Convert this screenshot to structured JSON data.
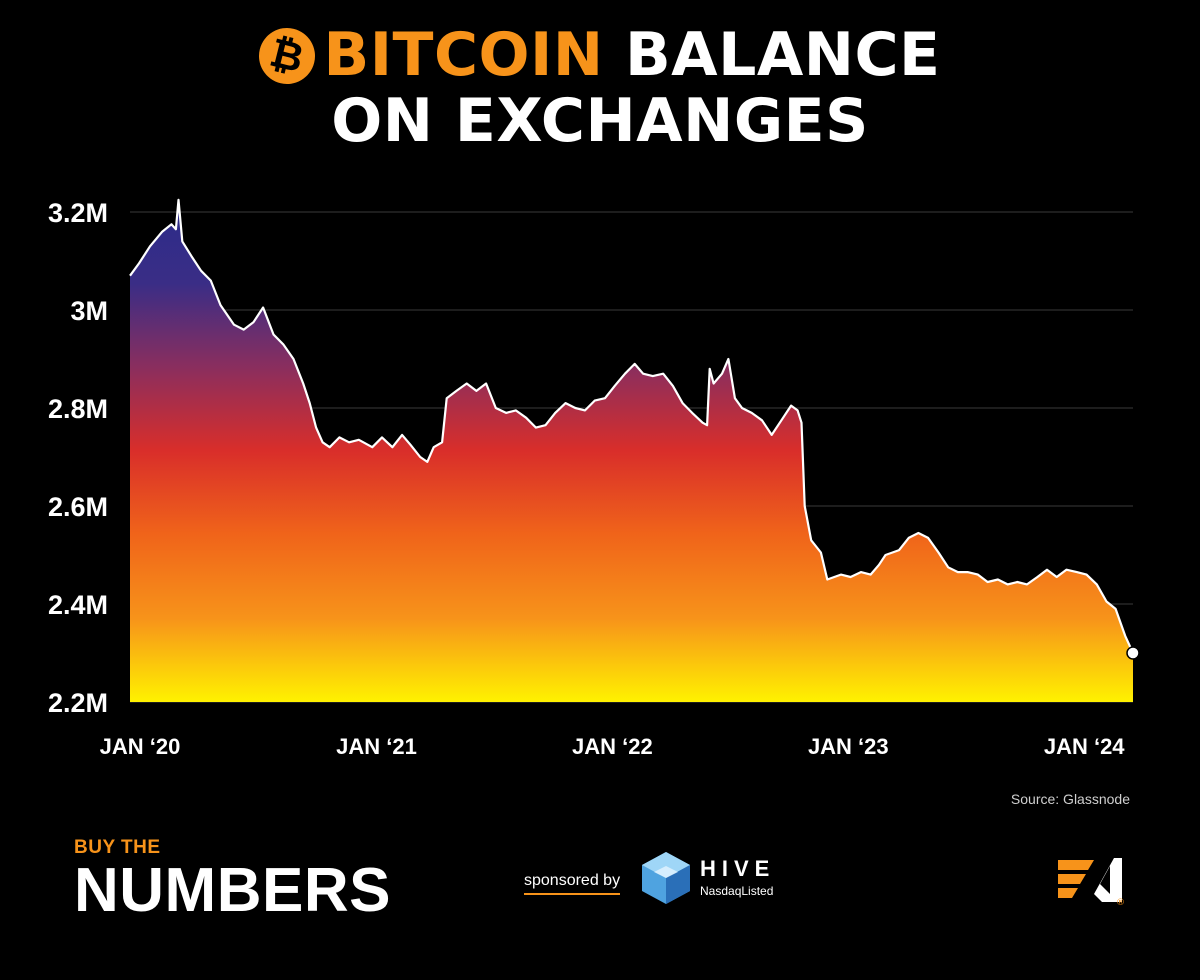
{
  "header": {
    "title_accent": "BITCOIN",
    "title_rest": "BALANCE",
    "title_line2": "ON EXCHANGES",
    "icon": "bitcoin-icon",
    "icon_glyph": "₿"
  },
  "source": "Source: Glassnode",
  "footer": {
    "brand_small": "BUY THE",
    "brand_big": "NUMBERS",
    "sponsored_by": "sponsored by",
    "sponsor_name": "HIVE",
    "sponsor_sub": "NasdaqListed"
  },
  "colors": {
    "accent": "#f7931a",
    "background": "#000000",
    "line": "#ffffff",
    "gradient": [
      "#2b2c8a",
      "#3a2d86",
      "#8a2e5e",
      "#d92e2a",
      "#f0641a",
      "#f7931a",
      "#fff200"
    ]
  },
  "chart_data": {
    "type": "area",
    "title": "BITCOIN BALANCE ON EXCHANGES",
    "xlabel": "",
    "ylabel": "",
    "x_tick_labels": [
      "JAN ‘20",
      "JAN ‘21",
      "JAN ‘22",
      "JAN ‘23",
      "JAN ‘24"
    ],
    "y_tick_labels": [
      "3.2M",
      "3M",
      "2.8M",
      "2.6M",
      "2.4M",
      "2.2M"
    ],
    "y_ticks": [
      3200000,
      3000000,
      2800000,
      2600000,
      2400000,
      2200000
    ],
    "ylim": [
      2200000,
      3200000
    ],
    "xlim": [
      "2020-01-01",
      "2024-04-01"
    ],
    "grid": true,
    "legend": "none",
    "fill": "vertical gradient from indigo (top) through red to yellow (bottom)",
    "end_marker": true,
    "series": [
      {
        "values": [
          [
            "2020-01-01",
            3070000
          ],
          [
            "2020-01-15",
            3095000
          ],
          [
            "2020-02-01",
            3130000
          ],
          [
            "2020-02-20",
            3160000
          ],
          [
            "2020-03-05",
            3175000
          ],
          [
            "2020-03-12",
            3165000
          ],
          [
            "2020-03-16",
            3225000
          ],
          [
            "2020-03-22",
            3140000
          ],
          [
            "2020-04-05",
            3110000
          ],
          [
            "2020-04-20",
            3080000
          ],
          [
            "2020-05-05",
            3060000
          ],
          [
            "2020-05-20",
            3010000
          ],
          [
            "2020-06-10",
            2970000
          ],
          [
            "2020-06-25",
            2960000
          ],
          [
            "2020-07-10",
            2975000
          ],
          [
            "2020-07-25",
            3005000
          ],
          [
            "2020-08-10",
            2950000
          ],
          [
            "2020-08-25",
            2930000
          ],
          [
            "2020-09-10",
            2900000
          ],
          [
            "2020-09-25",
            2850000
          ],
          [
            "2020-10-05",
            2810000
          ],
          [
            "2020-10-15",
            2760000
          ],
          [
            "2020-10-25",
            2730000
          ],
          [
            "2020-11-05",
            2720000
          ],
          [
            "2020-11-20",
            2740000
          ],
          [
            "2020-12-05",
            2730000
          ],
          [
            "2020-12-20",
            2735000
          ],
          [
            "2021-01-10",
            2720000
          ],
          [
            "2021-01-25",
            2740000
          ],
          [
            "2021-02-10",
            2720000
          ],
          [
            "2021-02-25",
            2745000
          ],
          [
            "2021-03-10",
            2725000
          ],
          [
            "2021-03-25",
            2700000
          ],
          [
            "2021-04-05",
            2690000
          ],
          [
            "2021-04-15",
            2720000
          ],
          [
            "2021-04-28",
            2730000
          ],
          [
            "2021-05-05",
            2820000
          ],
          [
            "2021-05-20",
            2835000
          ],
          [
            "2021-06-05",
            2850000
          ],
          [
            "2021-06-20",
            2835000
          ],
          [
            "2021-07-05",
            2850000
          ],
          [
            "2021-07-20",
            2800000
          ],
          [
            "2021-08-05",
            2790000
          ],
          [
            "2021-08-20",
            2795000
          ],
          [
            "2021-09-05",
            2780000
          ],
          [
            "2021-09-20",
            2760000
          ],
          [
            "2021-10-05",
            2765000
          ],
          [
            "2021-10-20",
            2790000
          ],
          [
            "2021-11-05",
            2810000
          ],
          [
            "2021-11-20",
            2800000
          ],
          [
            "2021-12-05",
            2795000
          ],
          [
            "2021-12-20",
            2815000
          ],
          [
            "2022-01-05",
            2820000
          ],
          [
            "2022-01-20",
            2845000
          ],
          [
            "2022-02-05",
            2870000
          ],
          [
            "2022-02-20",
            2890000
          ],
          [
            "2022-03-05",
            2870000
          ],
          [
            "2022-03-20",
            2865000
          ],
          [
            "2022-04-05",
            2870000
          ],
          [
            "2022-04-20",
            2845000
          ],
          [
            "2022-05-05",
            2810000
          ],
          [
            "2022-05-20",
            2790000
          ],
          [
            "2022-06-05",
            2770000
          ],
          [
            "2022-06-12",
            2765000
          ],
          [
            "2022-06-16",
            2880000
          ],
          [
            "2022-06-22",
            2850000
          ],
          [
            "2022-07-05",
            2870000
          ],
          [
            "2022-07-15",
            2900000
          ],
          [
            "2022-07-25",
            2820000
          ],
          [
            "2022-08-05",
            2800000
          ],
          [
            "2022-08-20",
            2790000
          ],
          [
            "2022-09-05",
            2775000
          ],
          [
            "2022-09-20",
            2745000
          ],
          [
            "2022-10-05",
            2775000
          ],
          [
            "2022-10-20",
            2805000
          ],
          [
            "2022-10-30",
            2795000
          ],
          [
            "2022-11-05",
            2770000
          ],
          [
            "2022-11-10",
            2600000
          ],
          [
            "2022-11-20",
            2530000
          ],
          [
            "2022-12-05",
            2505000
          ],
          [
            "2022-12-15",
            2450000
          ],
          [
            "2023-01-05",
            2460000
          ],
          [
            "2023-01-20",
            2455000
          ],
          [
            "2023-02-05",
            2465000
          ],
          [
            "2023-02-20",
            2460000
          ],
          [
            "2023-03-05",
            2480000
          ],
          [
            "2023-03-15",
            2500000
          ],
          [
            "2023-04-05",
            2510000
          ],
          [
            "2023-04-20",
            2535000
          ],
          [
            "2023-05-05",
            2545000
          ],
          [
            "2023-05-20",
            2535000
          ],
          [
            "2023-06-05",
            2505000
          ],
          [
            "2023-06-20",
            2475000
          ],
          [
            "2023-07-05",
            2465000
          ],
          [
            "2023-07-20",
            2465000
          ],
          [
            "2023-08-05",
            2460000
          ],
          [
            "2023-08-20",
            2445000
          ],
          [
            "2023-09-05",
            2450000
          ],
          [
            "2023-09-20",
            2440000
          ],
          [
            "2023-10-05",
            2445000
          ],
          [
            "2023-10-20",
            2440000
          ],
          [
            "2023-11-05",
            2455000
          ],
          [
            "2023-11-20",
            2470000
          ],
          [
            "2023-12-05",
            2455000
          ],
          [
            "2023-12-20",
            2470000
          ],
          [
            "2024-01-05",
            2465000
          ],
          [
            "2024-01-20",
            2460000
          ],
          [
            "2024-02-05",
            2440000
          ],
          [
            "2024-02-20",
            2405000
          ],
          [
            "2024-03-05",
            2390000
          ],
          [
            "2024-03-20",
            2335000
          ],
          [
            "2024-04-01",
            2300000
          ]
        ]
      }
    ]
  }
}
